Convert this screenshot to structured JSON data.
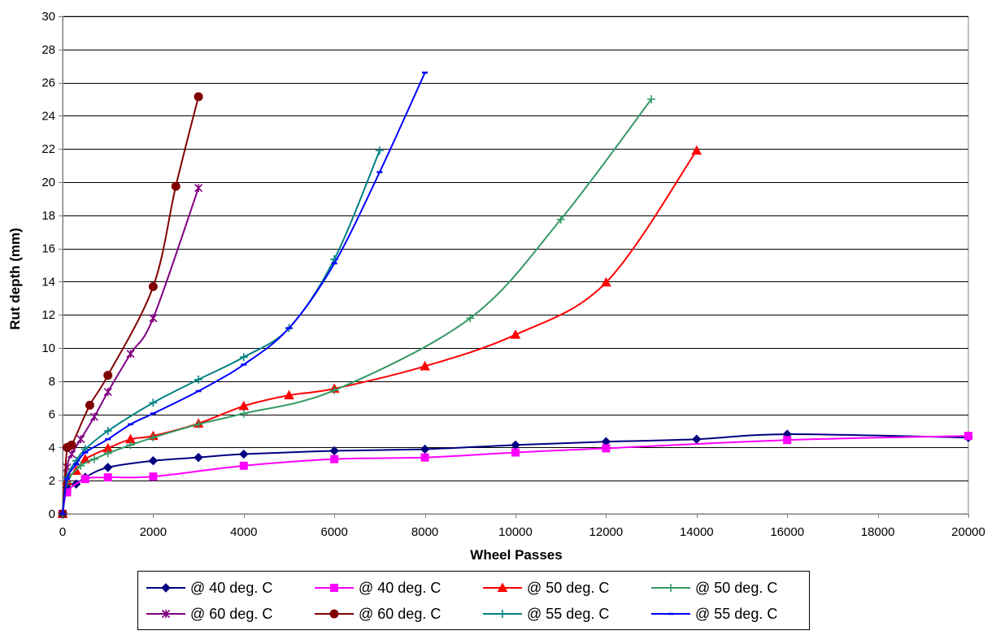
{
  "chart_data": {
    "type": "line",
    "title": "",
    "xlabel": "Wheel Passes",
    "ylabel": "Rut depth (mm)",
    "xlim": [
      0,
      20000
    ],
    "ylim": [
      0,
      30
    ],
    "xticks": [
      0,
      2000,
      4000,
      6000,
      8000,
      10000,
      12000,
      14000,
      16000,
      18000,
      20000
    ],
    "yticks": [
      0,
      2,
      4,
      6,
      8,
      10,
      12,
      14,
      16,
      18,
      20,
      22,
      24,
      26,
      28,
      30
    ],
    "xtick_labels": [
      "0",
      "2000",
      "4000",
      "6000",
      "8000",
      "10000",
      "12000",
      "14000",
      "16000",
      "18000",
      "20000"
    ],
    "ytick_labels": [
      "0",
      "2",
      "4",
      "6",
      "8",
      "10",
      "12",
      "14",
      "16",
      "18",
      "20",
      "22",
      "24",
      "26",
      "28",
      "30"
    ],
    "grid": "horizontal",
    "legend_position": "bottom",
    "series": [
      {
        "name": "@ 40 deg. C",
        "color": "#000080",
        "marker": "diamond",
        "x": [
          0,
          100,
          300,
          500,
          1000,
          2000,
          3000,
          4000,
          6000,
          8000,
          10000,
          12000,
          14000,
          16000,
          20000
        ],
        "y": [
          0,
          1.6,
          1.8,
          2.2,
          2.8,
          3.2,
          3.4,
          3.6,
          3.8,
          3.9,
          4.15,
          4.35,
          4.5,
          4.8,
          4.6
        ]
      },
      {
        "name": "@ 40 deg. C",
        "color": "#ff00ff",
        "marker": "square",
        "x": [
          0,
          100,
          500,
          1000,
          2000,
          4000,
          6000,
          8000,
          10000,
          12000,
          16000,
          20000
        ],
        "y": [
          0,
          1.3,
          2.1,
          2.2,
          2.25,
          2.9,
          3.3,
          3.4,
          3.7,
          3.95,
          4.45,
          4.7
        ]
      },
      {
        "name": "@ 50 deg. C",
        "color": "#ff0000",
        "marker": "triangle",
        "x": [
          0,
          100,
          300,
          500,
          1000,
          1500,
          2000,
          3000,
          4000,
          5000,
          6000,
          8000,
          10000,
          12000,
          14000
        ],
        "y": [
          0,
          2.0,
          2.6,
          3.3,
          3.95,
          4.5,
          4.7,
          5.45,
          6.5,
          7.15,
          7.55,
          8.9,
          10.8,
          13.95,
          21.9
        ]
      },
      {
        "name": "@ 50 deg. C",
        "color": "#339966",
        "marker": "plus",
        "x": [
          0,
          100,
          400,
          700,
          1000,
          1500,
          2000,
          3000,
          4000,
          6000,
          9000,
          11000,
          13000
        ],
        "y": [
          0,
          1.9,
          2.9,
          3.3,
          3.65,
          4.15,
          4.6,
          5.4,
          6.05,
          7.45,
          11.8,
          17.75,
          25.0
        ]
      },
      {
        "name": "@ 60 deg. C",
        "color": "#800080",
        "marker": "star",
        "x": [
          0,
          100,
          200,
          400,
          700,
          1000,
          1500,
          2000,
          3000
        ],
        "y": [
          0,
          2.8,
          3.6,
          4.5,
          5.85,
          7.35,
          9.65,
          11.8,
          19.65
        ]
      },
      {
        "name": "@ 60 deg. C",
        "color": "#800000",
        "marker": "circle",
        "x": [
          0,
          100,
          200,
          600,
          1000,
          2000,
          2500,
          3000
        ],
        "y": [
          0,
          4.0,
          4.15,
          6.55,
          8.35,
          13.7,
          19.75,
          25.15
        ]
      },
      {
        "name": "@ 55 deg. C",
        "color": "#008080",
        "marker": "plus",
        "x": [
          0,
          100,
          300,
          500,
          1000,
          2000,
          3000,
          4000,
          5000,
          6000,
          7000
        ],
        "y": [
          0,
          2.2,
          3.2,
          3.9,
          5.0,
          6.7,
          8.1,
          9.45,
          11.2,
          15.35,
          21.9
        ]
      },
      {
        "name": "@ 55 deg. C",
        "color": "#0000ff",
        "marker": "dash",
        "x": [
          0,
          100,
          300,
          500,
          1000,
          1500,
          2000,
          3000,
          4000,
          5000,
          6000,
          7000,
          8000
        ],
        "y": [
          0,
          2.1,
          3.0,
          3.7,
          4.5,
          5.4,
          6.05,
          7.4,
          9.0,
          11.2,
          15.1,
          20.6,
          26.6
        ]
      }
    ]
  }
}
